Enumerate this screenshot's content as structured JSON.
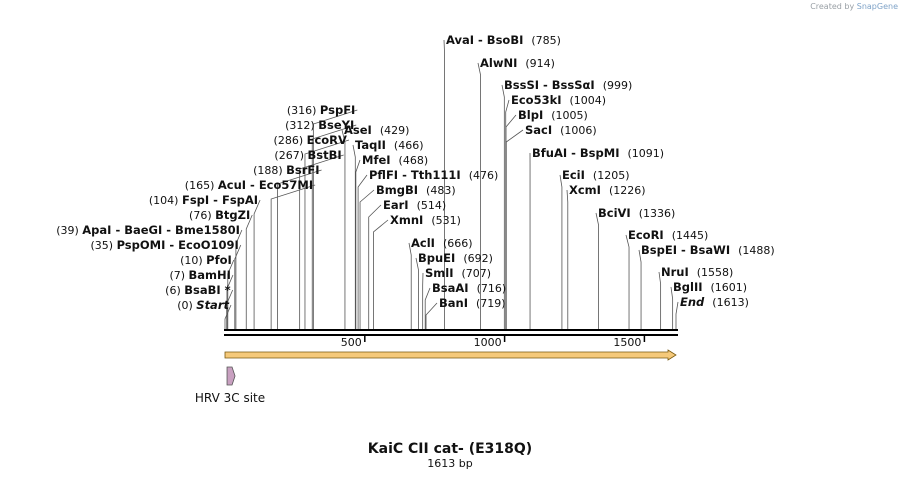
{
  "credit": {
    "prefix": "Created by",
    "brand": "SnapGene"
  },
  "sequence": {
    "name": "KaiC CII cat- (E318Q)",
    "length_label": "1613 bp",
    "length": 1613
  },
  "axis": {
    "ticks": [
      {
        "pos": 500,
        "label": "500"
      },
      {
        "pos": 1000,
        "label": "1000"
      },
      {
        "pos": 1500,
        "label": "1500"
      }
    ]
  },
  "feature": {
    "label": "HRV 3C site",
    "pos": 18,
    "color": "#c8a0c0"
  },
  "orf": {
    "color": "#f5c97a",
    "stroke": "#7a5a10"
  },
  "sites": [
    {
      "name": "Start",
      "pos": 0,
      "pos_label": "(0)",
      "italic": true,
      "side": "left"
    },
    {
      "name": "BsaBI *",
      "pos": 6,
      "pos_label": "(6)",
      "side": "left"
    },
    {
      "name": "BamHI",
      "pos": 7,
      "pos_label": "(7)",
      "side": "left"
    },
    {
      "name": "PfoI",
      "pos": 10,
      "pos_label": "(10)",
      "side": "left"
    },
    {
      "name": "PspOMI  -  EcoO109I",
      "pos": 35,
      "pos_label": "(35)",
      "side": "left"
    },
    {
      "name": "ApaI  -  BaeGI  -  Bme1580I",
      "pos": 39,
      "pos_label": "(39)",
      "side": "left"
    },
    {
      "name": "BtgZI",
      "pos": 76,
      "pos_label": "(76)",
      "side": "left"
    },
    {
      "name": "FspI  -  FspAI",
      "pos": 104,
      "pos_label": "(104)",
      "side": "left"
    },
    {
      "name": "AcuI  -  Eco57MI",
      "pos": 165,
      "pos_label": "(165)",
      "side": "left"
    },
    {
      "name": "BsrFI",
      "pos": 188,
      "pos_label": "(188)",
      "side": "left"
    },
    {
      "name": "BstBI",
      "pos": 267,
      "pos_label": "(267)",
      "side": "left"
    },
    {
      "name": "EcoRV",
      "pos": 286,
      "pos_label": "(286)",
      "side": "left"
    },
    {
      "name": "BseYI",
      "pos": 312,
      "pos_label": "(312)",
      "side": "left"
    },
    {
      "name": "PspFI",
      "pos": 316,
      "pos_label": "(316)",
      "side": "left"
    },
    {
      "name": "AseI",
      "pos": 429,
      "pos_label": "(429)",
      "side": "right"
    },
    {
      "name": "TaqII",
      "pos": 466,
      "pos_label": "(466)",
      "side": "right"
    },
    {
      "name": "MfeI",
      "pos": 468,
      "pos_label": "(468)",
      "side": "right"
    },
    {
      "name": "PflFI  -  Tth111I",
      "pos": 476,
      "pos_label": "(476)",
      "side": "right"
    },
    {
      "name": "BmgBI",
      "pos": 483,
      "pos_label": "(483)",
      "side": "right"
    },
    {
      "name": "EarI",
      "pos": 514,
      "pos_label": "(514)",
      "side": "right"
    },
    {
      "name": "XmnI",
      "pos": 531,
      "pos_label": "(531)",
      "side": "right"
    },
    {
      "name": "AclI",
      "pos": 666,
      "pos_label": "(666)",
      "side": "right"
    },
    {
      "name": "BpuEI",
      "pos": 692,
      "pos_label": "(692)",
      "side": "right"
    },
    {
      "name": "SmlI",
      "pos": 707,
      "pos_label": "(707)",
      "side": "right"
    },
    {
      "name": "BsaAI",
      "pos": 716,
      "pos_label": "(716)",
      "side": "right"
    },
    {
      "name": "BanI",
      "pos": 719,
      "pos_label": "(719)",
      "side": "right"
    },
    {
      "name": "AvaI  -  BsoBI",
      "pos": 785,
      "pos_label": "(785)",
      "side": "right"
    },
    {
      "name": "AlwNI",
      "pos": 914,
      "pos_label": "(914)",
      "side": "right"
    },
    {
      "name": "BssSI  -  BssSαI",
      "pos": 999,
      "pos_label": "(999)",
      "side": "right"
    },
    {
      "name": "Eco53kI",
      "pos": 1004,
      "pos_label": "(1004)",
      "side": "right"
    },
    {
      "name": "BlpI",
      "pos": 1005,
      "pos_label": "(1005)",
      "side": "right"
    },
    {
      "name": "SacI",
      "pos": 1006,
      "pos_label": "(1006)",
      "side": "right"
    },
    {
      "name": "BfuAI  -  BspMI",
      "pos": 1091,
      "pos_label": "(1091)",
      "side": "right"
    },
    {
      "name": "EciI",
      "pos": 1205,
      "pos_label": "(1205)",
      "side": "right"
    },
    {
      "name": "XcmI",
      "pos": 1226,
      "pos_label": "(1226)",
      "side": "right"
    },
    {
      "name": "BciVI",
      "pos": 1336,
      "pos_label": "(1336)",
      "side": "right"
    },
    {
      "name": "EcoRI",
      "pos": 1445,
      "pos_label": "(1445)",
      "side": "right"
    },
    {
      "name": "BspEI  -  BsaWI",
      "pos": 1488,
      "pos_label": "(1488)",
      "side": "right"
    },
    {
      "name": "NruI",
      "pos": 1558,
      "pos_label": "(1558)",
      "side": "right"
    },
    {
      "name": "BglII",
      "pos": 1601,
      "pos_label": "(1601)",
      "side": "right"
    },
    {
      "name": "End",
      "pos": 1613,
      "pos_label": "(1613)",
      "italic": true,
      "side": "right"
    }
  ]
}
